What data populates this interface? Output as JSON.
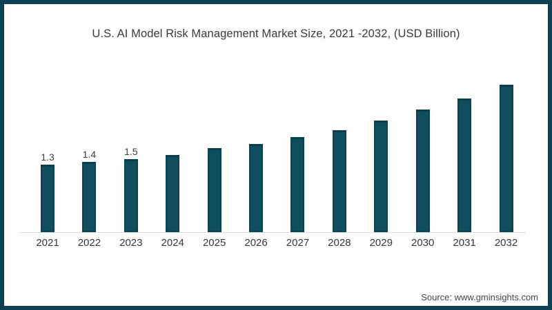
{
  "header": {
    "title": "U.S. AI Model Risk Management Market Size, 2021 -2032, (USD Billion)"
  },
  "footer": {
    "source": "Source: www.gminsights.com"
  },
  "colors": {
    "bar_fill": "#0f4e5f",
    "bar_edge": "#0c4253",
    "frame_border": "#0d4053",
    "axis_line": "#dcdcdc",
    "title_text": "#3a3a3a",
    "background": "#fdfdfc"
  },
  "chart_data": {
    "type": "bar",
    "title": "U.S. AI Model Risk Management Market Size, 2021 -2032, (USD Billion)",
    "xlabel": "",
    "ylabel": "",
    "categories": [
      "2021",
      "2022",
      "2023",
      "2024",
      "2025",
      "2026",
      "2027",
      "2028",
      "2029",
      "2030",
      "2031",
      "2032"
    ],
    "values": [
      1.3,
      1.4,
      1.5,
      1.65,
      1.9,
      2.05,
      2.3,
      2.55,
      2.9,
      3.3,
      3.7,
      4.2
    ],
    "data_labels": [
      "1.3",
      "1.4",
      "1.5",
      "",
      "",
      "",
      "",
      "",
      "",
      "",
      "",
      ""
    ],
    "unit": "USD Billion",
    "gridlines": false,
    "legend": false,
    "y_axis_visible": false,
    "bar_color": "#0f4e5f"
  }
}
